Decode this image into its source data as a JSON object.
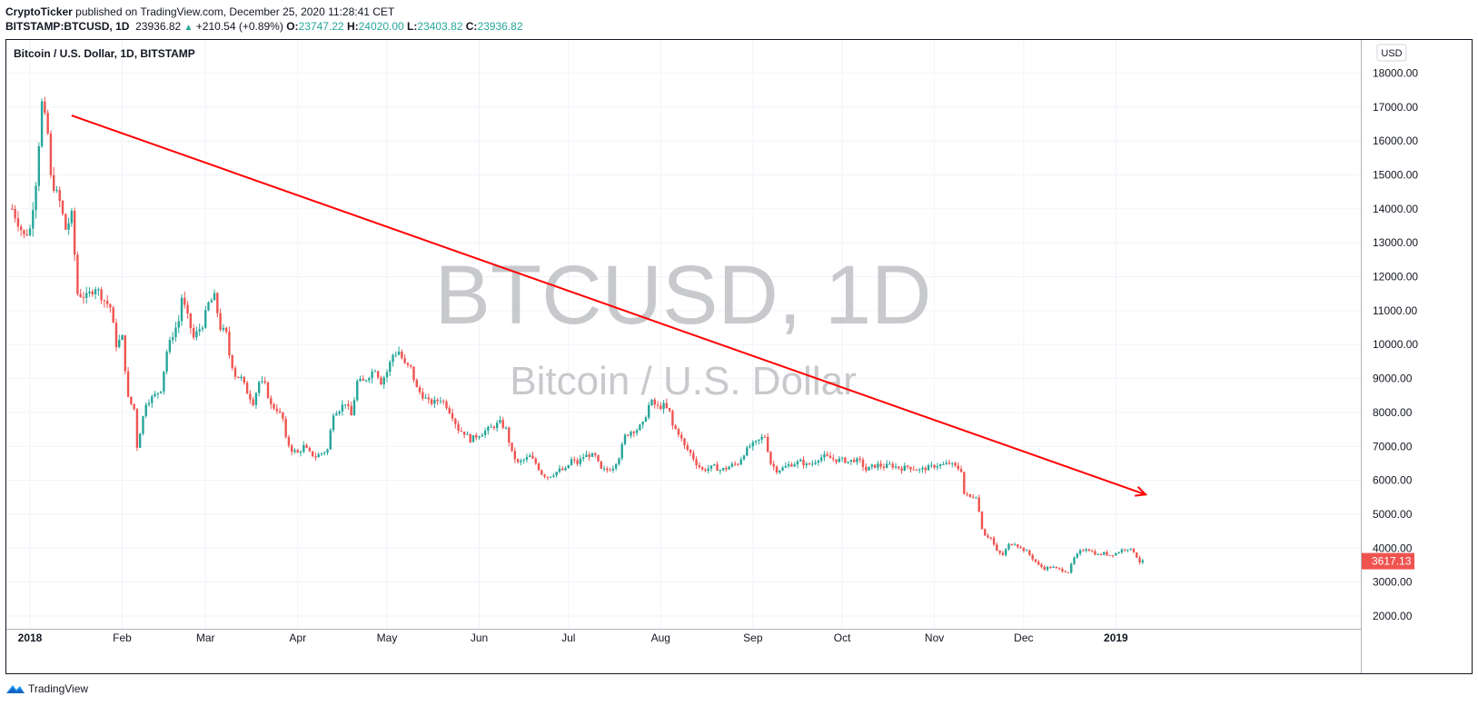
{
  "header": {
    "publisher": "CryptoTicker",
    "published_text": "published on TradingView.com, December 25, 2020 11:28:41 CET",
    "symbol": "BITSTAMP:BTCUSD, 1D",
    "last": "23936.82",
    "change": "+210.54 (+0.89%)",
    "o_label": "O:",
    "o": "23747.22",
    "h_label": "H:",
    "h": "24020.00",
    "l_label": "L:",
    "l": "23403.82",
    "c_label": "C:",
    "c": "23936.82"
  },
  "footer": {
    "brand": "TradingView",
    "logo_icon": "tradingview-logo-icon"
  },
  "colors": {
    "up": "#26a69a",
    "down": "#ef5350",
    "trendline": "#ff0000",
    "grid": "#f0f3fa",
    "watermark": "#c8c9cc"
  },
  "chart_data": {
    "type": "candlestick",
    "title": "Bitcoin / U.S. Dollar, 1D, BITSTAMP",
    "watermark_symbol": "BTCUSD, 1D",
    "watermark_name": "Bitcoin / U.S. Dollar",
    "currency_label": "USD",
    "last_price_label": "3617.13",
    "ylim": [
      1700,
      18600
    ],
    "y_ticks": [
      "2000.00",
      "3000.00",
      "4000.00",
      "5000.00",
      "6000.00",
      "7000.00",
      "8000.00",
      "9000.00",
      "10000.00",
      "11000.00",
      "12000.00",
      "13000.00",
      "14000.00",
      "15000.00",
      "16000.00",
      "17000.00",
      "18000.00"
    ],
    "x_ticks": [
      {
        "label": "2018",
        "day": 0,
        "bold": true
      },
      {
        "label": "Feb",
        "day": 31
      },
      {
        "label": "Mar",
        "day": 59
      },
      {
        "label": "Apr",
        "day": 90
      },
      {
        "label": "May",
        "day": 120
      },
      {
        "label": "Jun",
        "day": 151
      },
      {
        "label": "Jul",
        "day": 181
      },
      {
        "label": "Aug",
        "day": 212
      },
      {
        "label": "Sep",
        "day": 243
      },
      {
        "label": "Oct",
        "day": 273
      },
      {
        "label": "Nov",
        "day": 304
      },
      {
        "label": "Dec",
        "day": 334
      },
      {
        "label": "2019",
        "day": 365,
        "bold": true
      }
    ],
    "trendline": {
      "from": {
        "day": 14,
        "price": 16750
      },
      "to": {
        "day": 375,
        "price": 5580
      }
    },
    "close_path": [
      [
        -6,
        14000
      ],
      [
        -2,
        13200
      ],
      [
        0,
        13400
      ],
      [
        2,
        14800
      ],
      [
        4,
        17100
      ],
      [
        6,
        16200
      ],
      [
        7,
        14900
      ],
      [
        10,
        14200
      ],
      [
        12,
        13400
      ],
      [
        14,
        13800
      ],
      [
        16,
        11500
      ],
      [
        19,
        11400
      ],
      [
        22,
        11700
      ],
      [
        25,
        11300
      ],
      [
        27,
        11100
      ],
      [
        29,
        10000
      ],
      [
        31,
        10200
      ],
      [
        33,
        8400
      ],
      [
        35,
        8100
      ],
      [
        36,
        7000
      ],
      [
        39,
        8300
      ],
      [
        42,
        8500
      ],
      [
        44,
        8700
      ],
      [
        46,
        9800
      ],
      [
        48,
        10300
      ],
      [
        50,
        10700
      ],
      [
        51,
        11400
      ],
      [
        53,
        10800
      ],
      [
        55,
        10200
      ],
      [
        58,
        10600
      ],
      [
        60,
        11200
      ],
      [
        62,
        11400
      ],
      [
        64,
        10500
      ],
      [
        66,
        10300
      ],
      [
        67,
        9700
      ],
      [
        69,
        9100
      ],
      [
        71,
        9000
      ],
      [
        73,
        8600
      ],
      [
        75,
        8300
      ],
      [
        77,
        8900
      ],
      [
        79,
        8800
      ],
      [
        81,
        8200
      ],
      [
        83,
        8100
      ],
      [
        85,
        7800
      ],
      [
        86,
        7200
      ],
      [
        88,
        6900
      ],
      [
        90,
        6800
      ],
      [
        92,
        7000
      ],
      [
        94,
        6800
      ],
      [
        96,
        6700
      ],
      [
        98,
        6800
      ],
      [
        100,
        6900
      ],
      [
        102,
        8000
      ],
      [
        104,
        8100
      ],
      [
        106,
        8300
      ],
      [
        108,
        7900
      ],
      [
        110,
        8900
      ],
      [
        112,
        8900
      ],
      [
        114,
        9100
      ],
      [
        116,
        9300
      ],
      [
        118,
        8900
      ],
      [
        120,
        9200
      ],
      [
        122,
        9700
      ],
      [
        124,
        9800
      ],
      [
        126,
        9400
      ],
      [
        128,
        9300
      ],
      [
        130,
        8700
      ],
      [
        132,
        8500
      ],
      [
        134,
        8300
      ],
      [
        136,
        8300
      ],
      [
        138,
        8400
      ],
      [
        140,
        8200
      ],
      [
        142,
        7900
      ],
      [
        144,
        7500
      ],
      [
        146,
        7400
      ],
      [
        148,
        7200
      ],
      [
        150,
        7300
      ],
      [
        152,
        7400
      ],
      [
        154,
        7500
      ],
      [
        156,
        7600
      ],
      [
        158,
        7700
      ],
      [
        160,
        7500
      ],
      [
        162,
        6800
      ],
      [
        164,
        6500
      ],
      [
        166,
        6600
      ],
      [
        168,
        6700
      ],
      [
        170,
        6500
      ],
      [
        172,
        6200
      ],
      [
        174,
        6100
      ],
      [
        176,
        6200
      ],
      [
        178,
        6300
      ],
      [
        180,
        6300
      ],
      [
        182,
        6600
      ],
      [
        184,
        6500
      ],
      [
        186,
        6700
      ],
      [
        188,
        6750
      ],
      [
        190,
        6700
      ],
      [
        192,
        6300
      ],
      [
        194,
        6300
      ],
      [
        196,
        6400
      ],
      [
        198,
        6700
      ],
      [
        200,
        7300
      ],
      [
        202,
        7450
      ],
      [
        204,
        7500
      ],
      [
        206,
        7650
      ],
      [
        208,
        8200
      ],
      [
        209,
        8300
      ],
      [
        211,
        8150
      ],
      [
        213,
        8200
      ],
      [
        215,
        8000
      ],
      [
        216,
        7600
      ],
      [
        218,
        7400
      ],
      [
        220,
        7000
      ],
      [
        222,
        6800
      ],
      [
        224,
        6500
      ],
      [
        226,
        6300
      ],
      [
        228,
        6350
      ],
      [
        230,
        6400
      ],
      [
        232,
        6300
      ],
      [
        234,
        6350
      ],
      [
        236,
        6450
      ],
      [
        238,
        6500
      ],
      [
        240,
        6800
      ],
      [
        242,
        7000
      ],
      [
        244,
        7100
      ],
      [
        246,
        7250
      ],
      [
        247,
        7300
      ],
      [
        249,
        6500
      ],
      [
        251,
        6300
      ],
      [
        253,
        6350
      ],
      [
        255,
        6450
      ],
      [
        257,
        6500
      ],
      [
        259,
        6550
      ],
      [
        261,
        6450
      ],
      [
        263,
        6500
      ],
      [
        265,
        6650
      ],
      [
        267,
        6700
      ],
      [
        269,
        6650
      ],
      [
        271,
        6600
      ],
      [
        273,
        6600
      ],
      [
        275,
        6550
      ],
      [
        277,
        6600
      ],
      [
        279,
        6550
      ],
      [
        281,
        6300
      ],
      [
        283,
        6400
      ],
      [
        285,
        6450
      ],
      [
        287,
        6400
      ],
      [
        289,
        6450
      ],
      [
        291,
        6400
      ],
      [
        293,
        6350
      ],
      [
        295,
        6400
      ],
      [
        297,
        6350
      ],
      [
        299,
        6300
      ],
      [
        301,
        6350
      ],
      [
        303,
        6400
      ],
      [
        305,
        6450
      ],
      [
        307,
        6450
      ],
      [
        309,
        6500
      ],
      [
        311,
        6400
      ],
      [
        313,
        6300
      ],
      [
        314,
        5600
      ],
      [
        316,
        5500
      ],
      [
        318,
        5550
      ],
      [
        320,
        4600
      ],
      [
        321,
        4400
      ],
      [
        323,
        4300
      ],
      [
        325,
        3900
      ],
      [
        327,
        3800
      ],
      [
        329,
        4100
      ],
      [
        331,
        4150
      ],
      [
        333,
        4000
      ],
      [
        335,
        3900
      ],
      [
        337,
        3700
      ],
      [
        339,
        3500
      ],
      [
        341,
        3400
      ],
      [
        343,
        3450
      ],
      [
        345,
        3400
      ],
      [
        347,
        3350
      ],
      [
        349,
        3300
      ],
      [
        351,
        3700
      ],
      [
        353,
        3900
      ],
      [
        355,
        4000
      ],
      [
        357,
        3900
      ],
      [
        359,
        3800
      ],
      [
        361,
        3850
      ],
      [
        363,
        3800
      ],
      [
        365,
        3850
      ],
      [
        367,
        3950
      ],
      [
        369,
        4000
      ],
      [
        371,
        3900
      ],
      [
        373,
        3600
      ],
      [
        374,
        3600
      ]
    ]
  }
}
